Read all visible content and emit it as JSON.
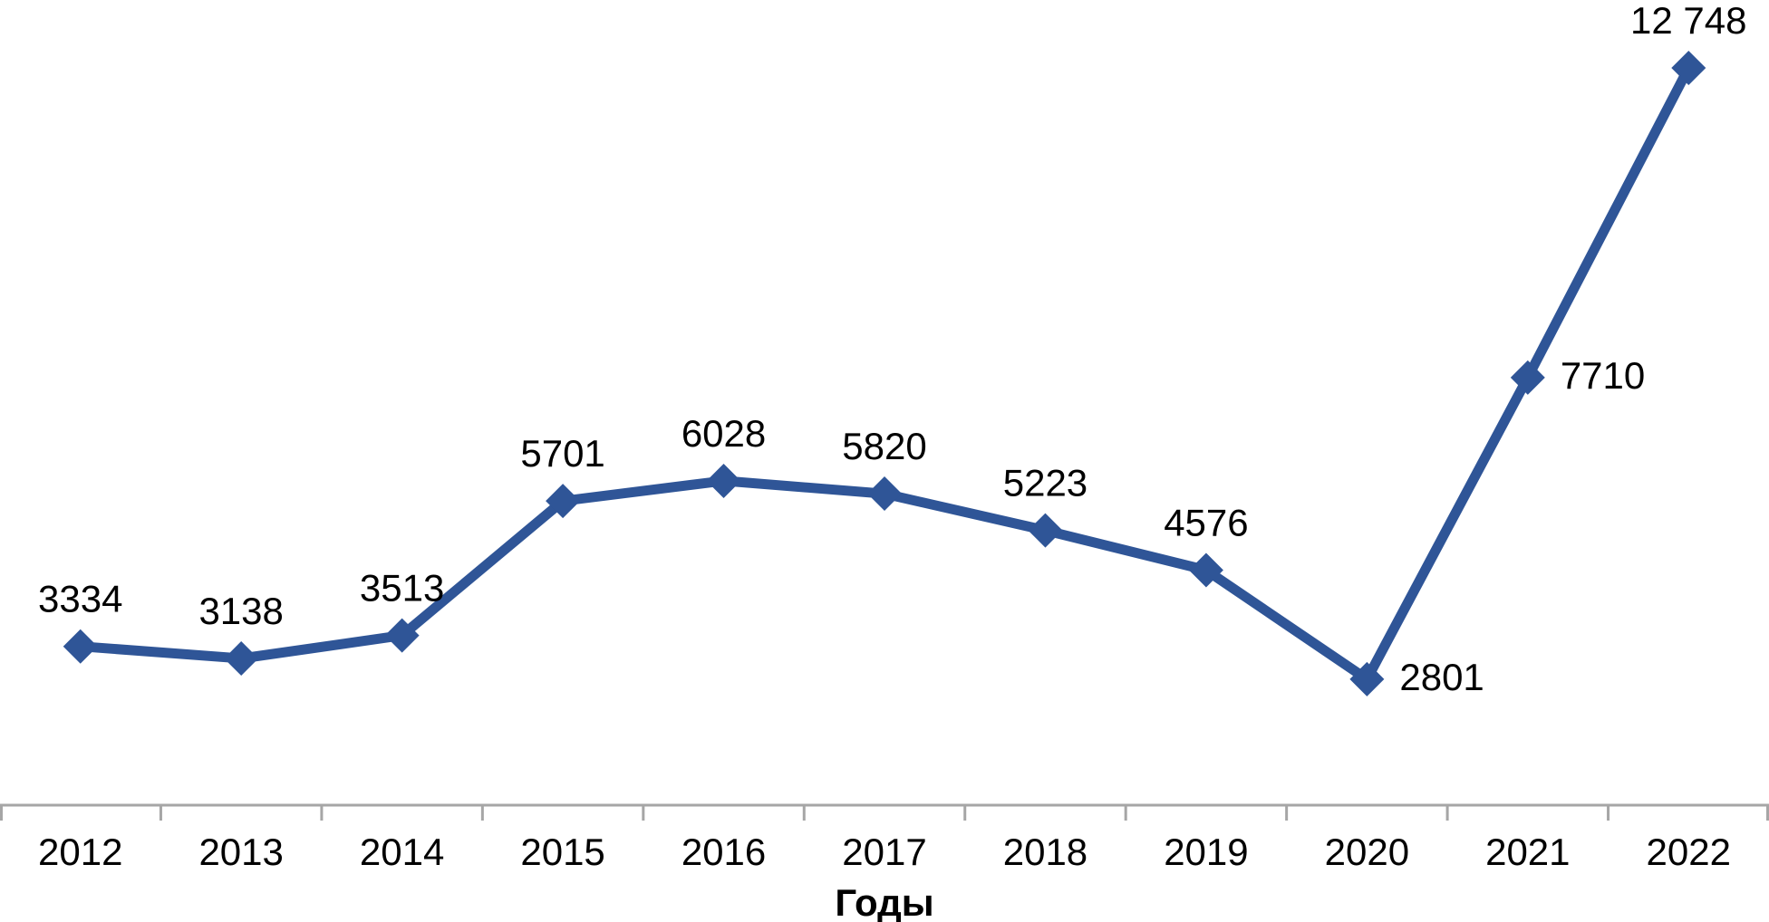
{
  "page": {
    "background": "#FFFFFF"
  },
  "chart_data": {
    "type": "line",
    "title": "",
    "xlabel": "Годы",
    "ylabel": "",
    "categories": [
      "2012",
      "2013",
      "2014",
      "2015",
      "2016",
      "2017",
      "2018",
      "2019",
      "2020",
      "2021",
      "2022"
    ],
    "series": [
      {
        "name": "",
        "values": [
          3334,
          3138,
          3513,
          5701,
          6028,
          5820,
          5223,
          4576,
          2801,
          7710,
          12748
        ],
        "labels": [
          "3334",
          "3138",
          "3513",
          "5701",
          "6028",
          "5820",
          "5223",
          "4576",
          "2801",
          "7710",
          "12 748"
        ],
        "color": "#2F5597",
        "marker": "diamond"
      }
    ],
    "label_placement": [
      "above",
      "above",
      "above",
      "above",
      "above",
      "above",
      "above",
      "above",
      "right",
      "right",
      "above"
    ],
    "ylim": [
      751,
      13853
    ],
    "grid": false,
    "legend": "none",
    "axis_color": "#A6A6A6",
    "text_color": "#000000"
  }
}
